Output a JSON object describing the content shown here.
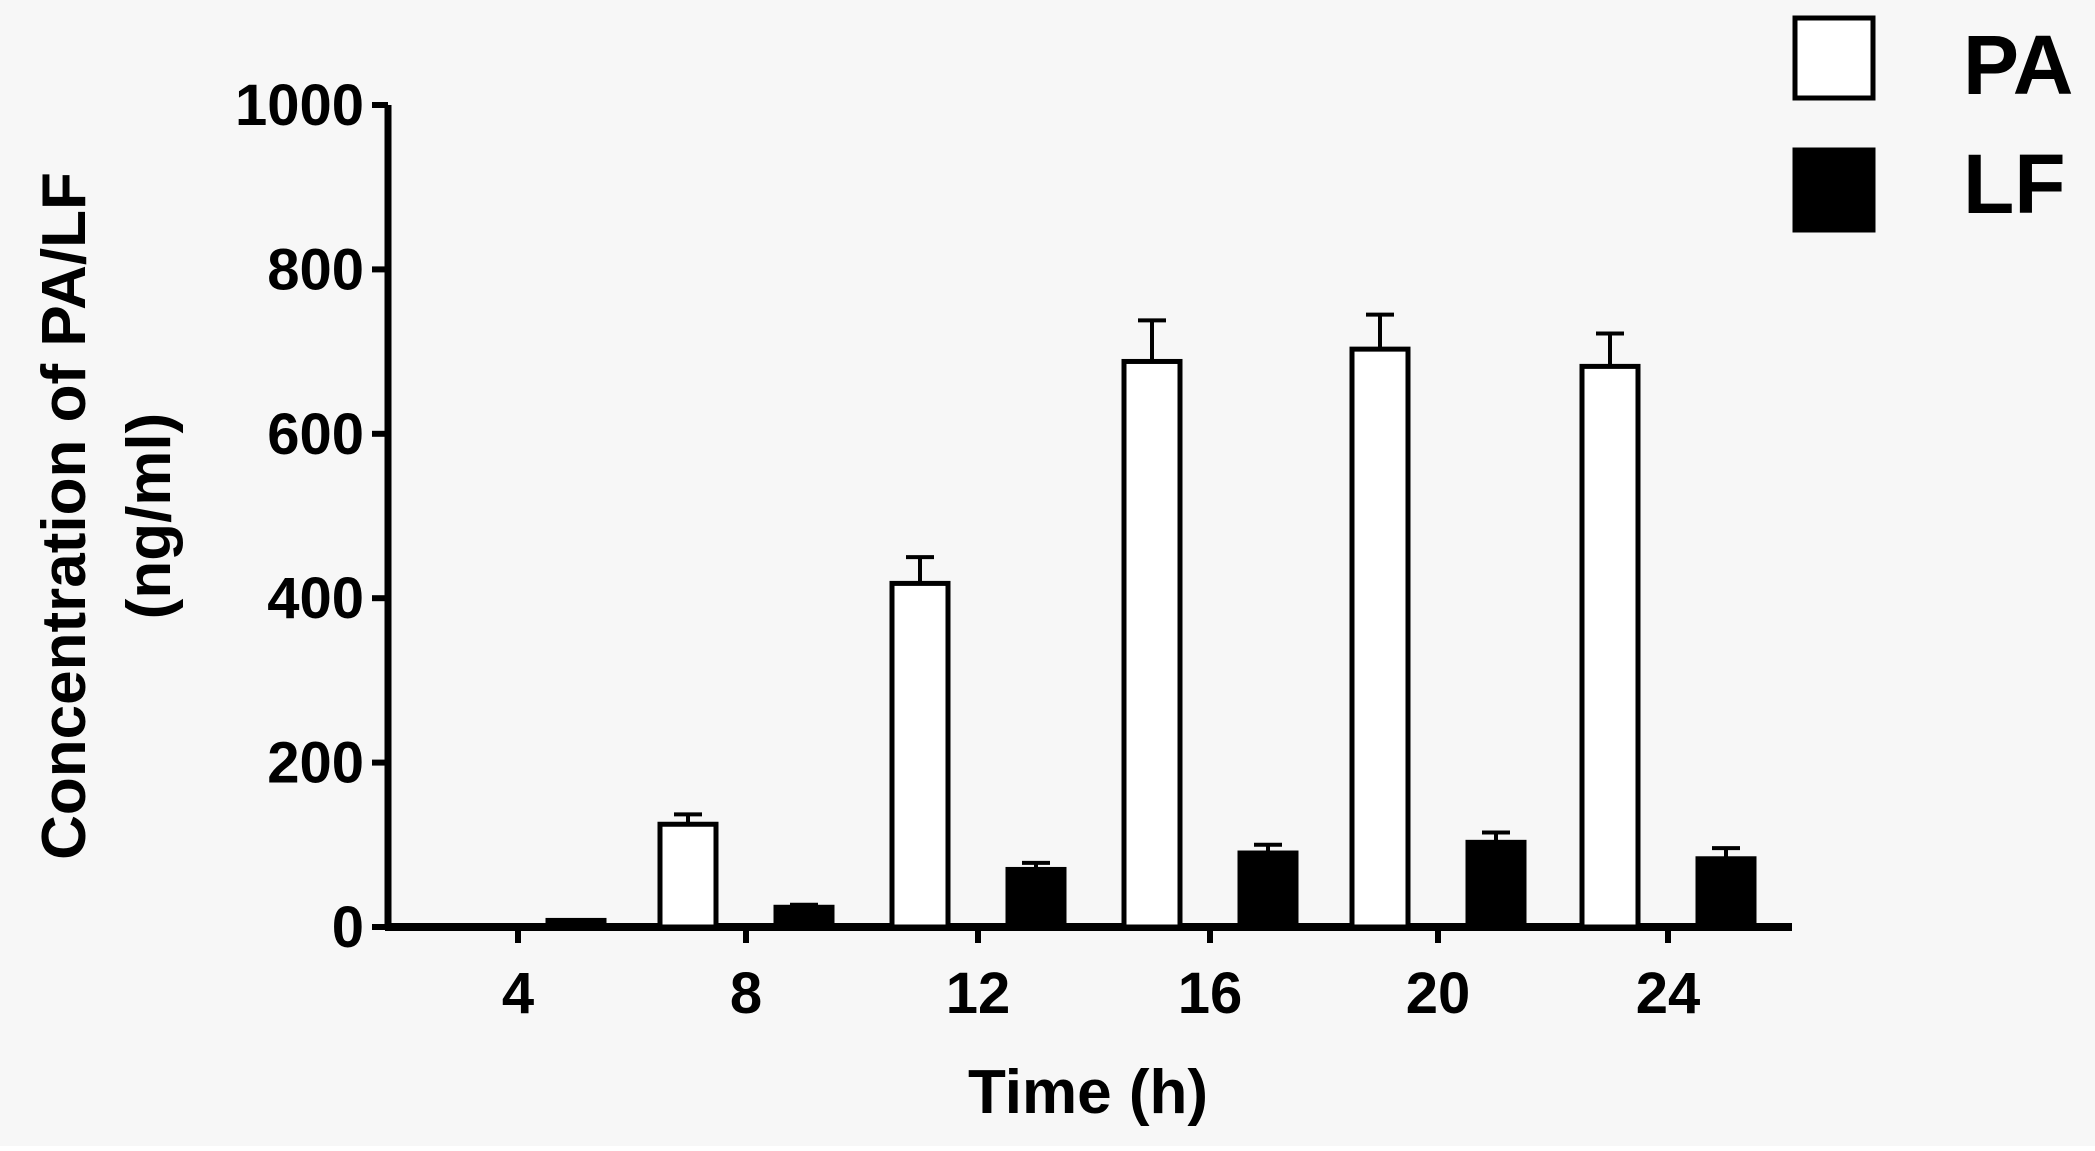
{
  "chart_data": {
    "type": "bar",
    "title": "",
    "xlabel": "Time (h)",
    "ylabel_lines": [
      "Concentration of PA/LF",
      "(ng/ml)"
    ],
    "categories": [
      "4",
      "8",
      "12",
      "16",
      "20",
      "24"
    ],
    "ylim": [
      0,
      1000
    ],
    "yticks": [
      0,
      200,
      400,
      600,
      800,
      1000
    ],
    "ytick_labels": [
      "0",
      "200",
      "400",
      "600",
      "800",
      "1000"
    ],
    "legend_position": "top-right",
    "grid": false,
    "series": [
      {
        "name": "PA",
        "fill": "#ffffff",
        "values": [
          0,
          125,
          418,
          688,
          703,
          682
        ],
        "errors": [
          0,
          12,
          32,
          50,
          42,
          40
        ]
      },
      {
        "name": "LF",
        "fill": "#000000",
        "values": [
          8,
          24,
          70,
          90,
          103,
          83
        ],
        "errors": [
          0,
          3,
          8,
          10,
          12,
          13
        ]
      }
    ]
  }
}
